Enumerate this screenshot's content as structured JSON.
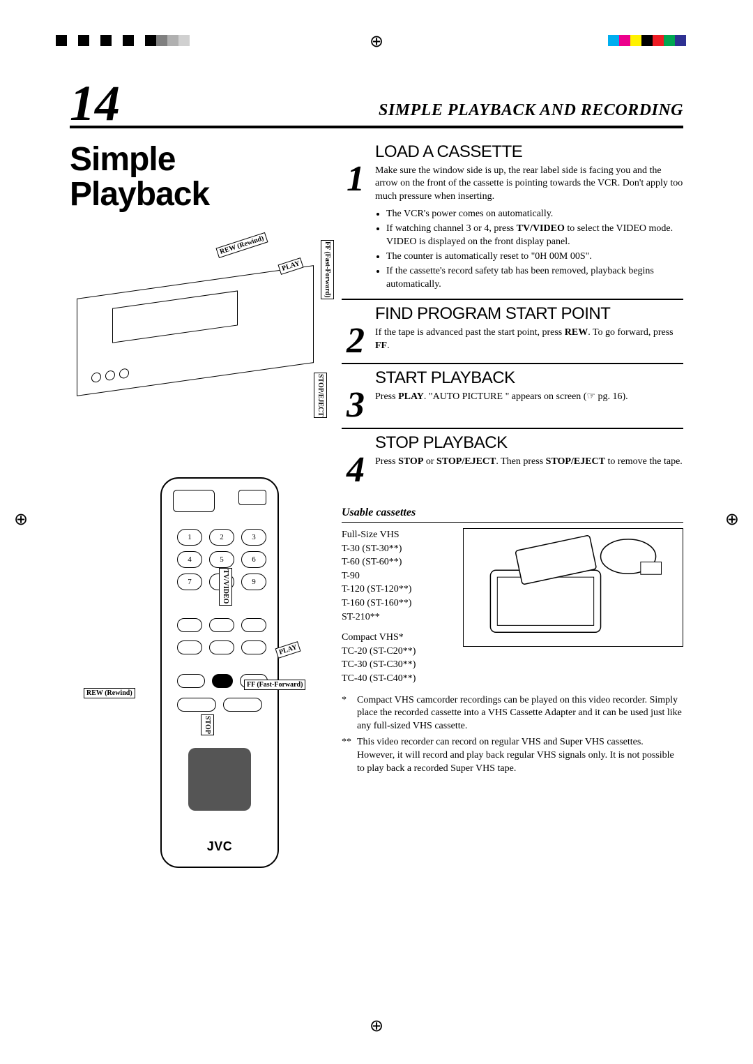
{
  "registration": {
    "left_colors": [
      "#000000",
      "#ffffff",
      "#000000",
      "#ffffff",
      "#000000",
      "#ffffff",
      "#000000",
      "#ffffff",
      "#000000",
      "#808080",
      "#b0b0b0",
      "#d0d0d0"
    ],
    "right_colors": [
      "#00aeef",
      "#ec008c",
      "#fff200",
      "#000000",
      "#ed1c24",
      "#00a651",
      "#2e3192",
      "#ffffff"
    ]
  },
  "page_number": "14",
  "header_title": "SIMPLE PLAYBACK AND RECORDING",
  "section_title_line1": "Simple",
  "section_title_line2": "Playback",
  "vcr_callouts": {
    "rew": "REW (Rewind)",
    "play": "PLAY",
    "ff": "FF (Fast-Forward)",
    "stop_eject": "STOP/EJECT"
  },
  "remote_callouts": {
    "tv_video": "TV/VIDEO",
    "play": "PLAY",
    "ff": "FF (Fast-Forward)",
    "rew": "REW (Rewind)",
    "stop": "STOP"
  },
  "remote": {
    "keys": [
      "1",
      "2",
      "3",
      "4",
      "5",
      "6",
      "7",
      "",
      "9"
    ],
    "logo": "JVC"
  },
  "steps": [
    {
      "num": "1",
      "title": "LOAD A CASSETTE",
      "desc": "Make sure the window side is up, the rear label side is facing you and the arrow on the front of the cassette is pointing towards the VCR. Don't apply too much pressure when inserting.",
      "bullets": [
        "The VCR's power comes on automatically.",
        "If watching channel 3 or 4, press <b>TV/VIDEO</b> to select the VIDEO mode. VIDEO is displayed on the front display panel.",
        "The counter is automatically reset to \"0H 00M 00S\".",
        "If the cassette's record safety tab has been removed, playback begins automatically."
      ]
    },
    {
      "num": "2",
      "title": "FIND PROGRAM START POINT",
      "desc": "If the tape is advanced past the start point, press <b>REW</b>. To go forward, press <b>FF</b>.",
      "bullets": []
    },
    {
      "num": "3",
      "title": "START PLAYBACK",
      "desc": "Press <b>PLAY</b>. \"AUTO PICTURE \" appears on screen (☞ pg. 16).",
      "bullets": []
    },
    {
      "num": "4",
      "title": "STOP PLAYBACK",
      "desc": "Press <b>STOP</b> or <b>STOP/EJECT</b>. Then press <b>STOP/EJECT</b> to remove the tape.",
      "bullets": []
    }
  ],
  "usable": {
    "title": "Usable cassettes",
    "full_head": "Full-Size VHS",
    "full_list": [
      "T-30 (ST-30**)",
      "T-60 (ST-60**)",
      "T-90",
      "T-120 (ST-120**)",
      "T-160 (ST-160**)",
      "ST-210**"
    ],
    "compact_head": "Compact VHS*",
    "compact_list": [
      "TC-20 (ST-C20**)",
      "TC-30 (ST-C30**)",
      "TC-40 (ST-C40**)"
    ],
    "footnotes": [
      {
        "mark": "*",
        "text": "Compact VHS camcorder recordings can be played on this video recorder. Simply place the recorded cassette into a VHS Cassette Adapter and it can be used just like any full-sized VHS cassette."
      },
      {
        "mark": "**",
        "text": "This video recorder can record on regular VHS and Super VHS cassettes. However, it will record and play back regular VHS signals only. It is not possible to play back a recorded Super VHS tape."
      }
    ]
  }
}
